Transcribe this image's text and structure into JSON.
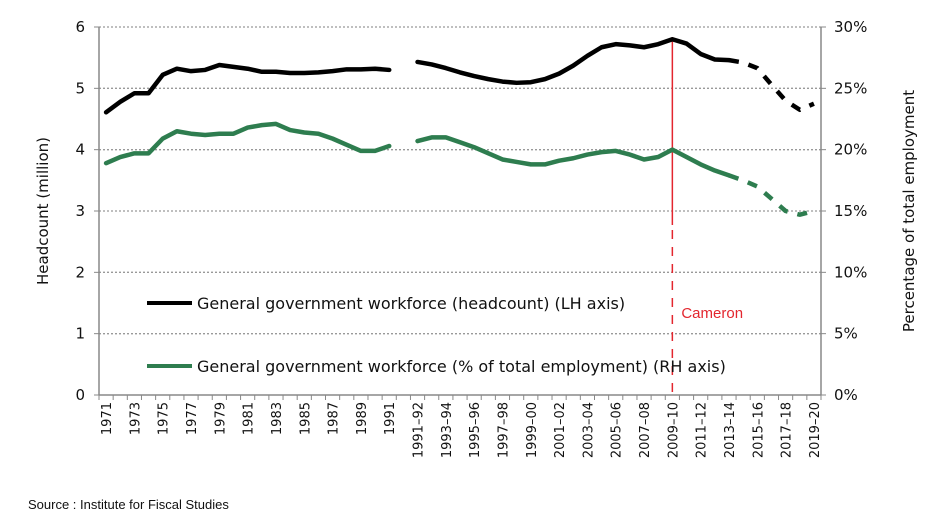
{
  "chart_data": {
    "type": "line",
    "title": "",
    "ylabel": "Headcount (million)",
    "ylabel_right": "Percentage of total employment",
    "ylim": [
      0,
      6
    ],
    "ylim_right": [
      0,
      30
    ],
    "yticks": [
      "0",
      "1",
      "2",
      "3",
      "4",
      "5",
      "6"
    ],
    "yticks_right": [
      "0%",
      "5%",
      "10%",
      "15%",
      "20%",
      "25%",
      "30%"
    ],
    "grid": true,
    "legend_placement": "bottom-left inside",
    "categories": [
      "1971",
      "1972",
      "1973",
      "1974",
      "1975",
      "1976",
      "1977",
      "1978",
      "1979",
      "1980",
      "1981",
      "1982",
      "1983",
      "1984",
      "1985",
      "1986",
      "1987",
      "1988",
      "1989",
      "1990",
      "1991",
      "",
      "1991–92",
      "1992–93",
      "1993–94",
      "1994–95",
      "1995–96",
      "1996–97",
      "1997–98",
      "1998–99",
      "1999–00",
      "2000–01",
      "2001–02",
      "2002–03",
      "2003–04",
      "2004–05",
      "2005–06",
      "2006–07",
      "2007–08",
      "2008–09",
      "2009–10",
      "2010–11",
      "2011–12",
      "2012–13",
      "2013–14",
      "2014–15",
      "2015–16",
      "2016–17",
      "2017–18",
      "2018–19",
      "2019–20"
    ],
    "series": [
      {
        "name": "General government workforce (headcount) (LH axis)",
        "axis": "left",
        "color": "#000000",
        "values": [
          4.61,
          4.78,
          4.92,
          4.92,
          5.22,
          5.32,
          5.28,
          5.3,
          5.38,
          5.35,
          5.32,
          5.27,
          5.27,
          5.25,
          5.25,
          5.26,
          5.28,
          5.31,
          5.31,
          5.32,
          5.3,
          null,
          5.43,
          5.39,
          5.33,
          5.26,
          5.2,
          5.15,
          5.11,
          5.09,
          5.1,
          5.15,
          5.24,
          5.37,
          5.53,
          5.67,
          5.72,
          5.7,
          5.67,
          5.72,
          5.8,
          5.73,
          5.56,
          5.47,
          5.46,
          5.42,
          5.33,
          5.06,
          4.8,
          4.65,
          4.75
        ]
      },
      {
        "name": "General government workforce (% of total employment) (RH axis)",
        "axis": "right",
        "color": "#2e7d4f",
        "values": [
          18.9,
          19.4,
          19.7,
          19.7,
          20.9,
          21.5,
          21.3,
          21.2,
          21.3,
          21.3,
          21.8,
          22.0,
          22.1,
          21.6,
          21.4,
          21.3,
          20.9,
          20.4,
          19.9,
          19.9,
          20.3,
          null,
          20.7,
          21.0,
          21.0,
          20.6,
          20.2,
          19.7,
          19.2,
          19.0,
          18.8,
          18.8,
          19.1,
          19.3,
          19.6,
          19.8,
          19.9,
          19.6,
          19.2,
          19.4,
          20.0,
          19.4,
          18.8,
          18.3,
          17.9,
          17.5,
          17.0,
          16.0,
          15.0,
          14.7,
          15.0
        ]
      }
    ],
    "projection_from": "2013–14",
    "annotations": [
      {
        "text": "Cameron",
        "at": "2009–10",
        "color": "#e3262e"
      }
    ]
  },
  "source": "Source : Institute for Fiscal Studies"
}
